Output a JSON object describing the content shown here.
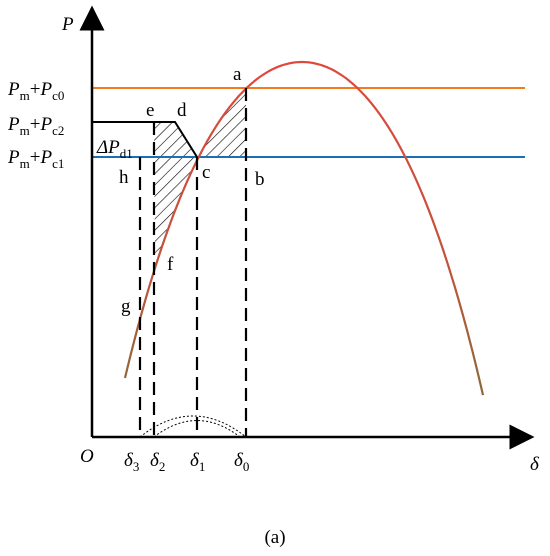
{
  "axes": {
    "y": "P",
    "x": "δ",
    "origin": "O"
  },
  "levels": [
    [
      "P",
      "m",
      "+",
      "P",
      "c0"
    ],
    [
      "P",
      "m",
      "+",
      "P",
      "c2"
    ],
    [
      "P",
      "m",
      "+",
      "P",
      "c1"
    ]
  ],
  "delta_p": [
    "ΔP",
    "d1"
  ],
  "points": {
    "a": "a",
    "b": "b",
    "c": "c",
    "d": "d",
    "e": "e",
    "f": "f",
    "g": "g",
    "h": "h"
  },
  "angles": [
    [
      "δ",
      "3"
    ],
    [
      "δ",
      "2"
    ],
    [
      "δ",
      "1"
    ],
    [
      "δ",
      "0"
    ]
  ],
  "caption": "(a)"
}
